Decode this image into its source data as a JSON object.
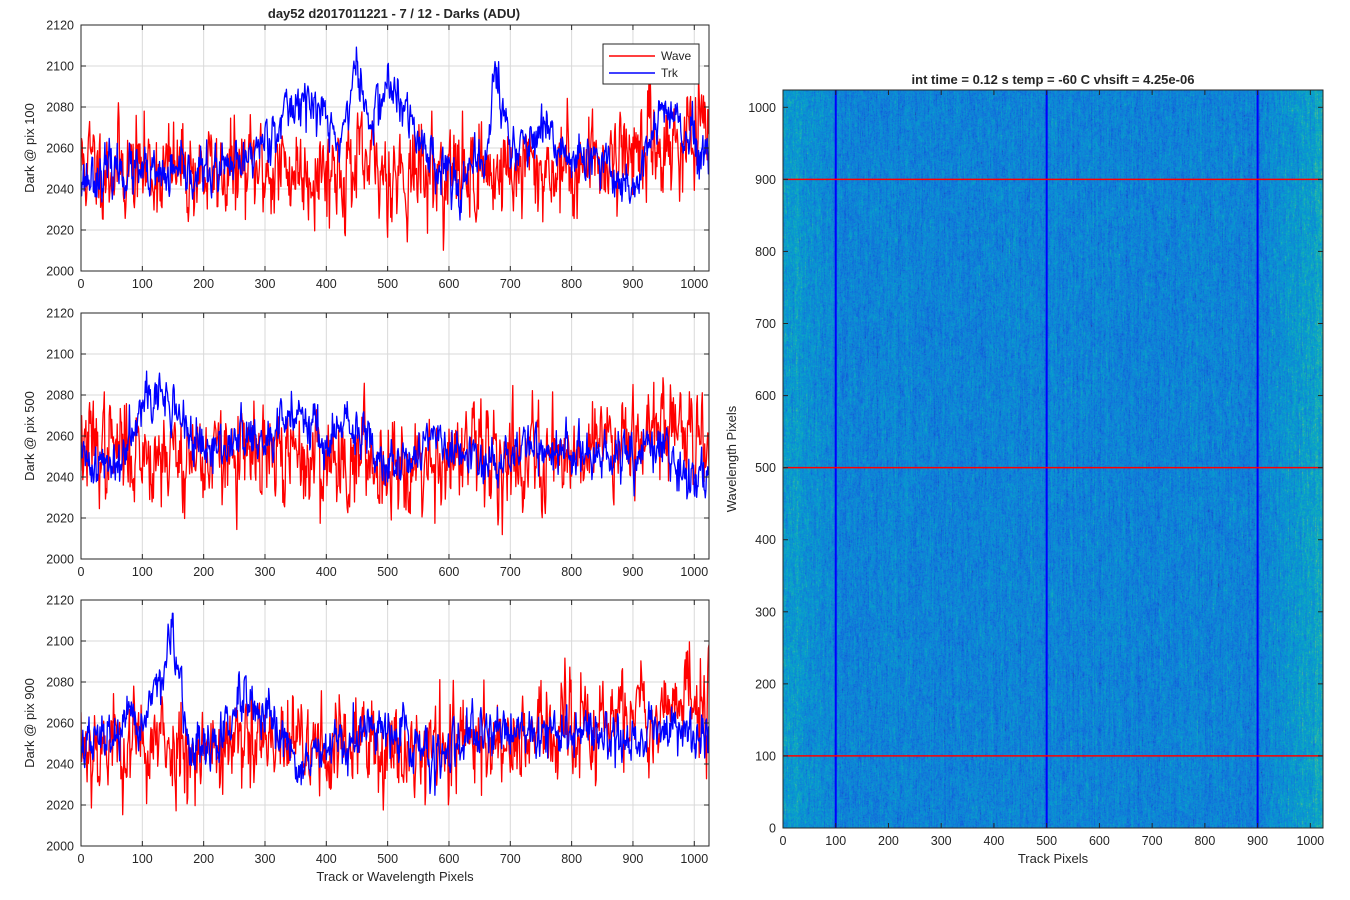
{
  "figure_title": "day52 d2017011221 - 7 / 12 - Darks (ADU)",
  "colors": {
    "wave": "#ff0000",
    "trk": "#0000ff",
    "grid": "#d9d9d9",
    "axis": "#262626"
  },
  "chart_data": [
    {
      "type": "line",
      "title": "day52 d2017011221 - 7 / 12 - Darks (ADU)",
      "xlabel": "",
      "ylabel": "Dark @ pix 100",
      "xlim": [
        0,
        1024
      ],
      "ylim": [
        2000,
        2120
      ],
      "x_ticks": [
        0,
        100,
        200,
        300,
        400,
        500,
        600,
        700,
        800,
        900,
        1000
      ],
      "y_ticks": [
        2000,
        2020,
        2040,
        2060,
        2080,
        2100,
        2120
      ],
      "grid": true,
      "legend": {
        "location": "top-right",
        "entries": [
          "Wave",
          "Trk"
        ]
      },
      "series": [
        {
          "name": "Wave",
          "color": "#ff0000",
          "mean": 2050,
          "noise": 12,
          "seed": 11,
          "anchors": [
            [
              0,
              2052
            ],
            [
              200,
              2048
            ],
            [
              400,
              2050
            ],
            [
              600,
              2048
            ],
            [
              800,
              2050
            ],
            [
              900,
              2060
            ],
            [
              1024,
              2065
            ]
          ]
        },
        {
          "name": "Trk",
          "color": "#0000ff",
          "mean": 2050,
          "noise": 6,
          "seed": 23,
          "anchors": [
            [
              0,
              2045
            ],
            [
              60,
              2050
            ],
            [
              120,
              2045
            ],
            [
              200,
              2048
            ],
            [
              260,
              2050
            ],
            [
              300,
              2065
            ],
            [
              360,
              2085
            ],
            [
              400,
              2075
            ],
            [
              420,
              2060
            ],
            [
              450,
              2100
            ],
            [
              470,
              2070
            ],
            [
              500,
              2092
            ],
            [
              560,
              2060
            ],
            [
              620,
              2042
            ],
            [
              660,
              2055
            ],
            [
              675,
              2098
            ],
            [
              700,
              2060
            ],
            [
              760,
              2065
            ],
            [
              800,
              2055
            ],
            [
              860,
              2050
            ],
            [
              900,
              2040
            ],
            [
              950,
              2080
            ],
            [
              1000,
              2060
            ],
            [
              1024,
              2050
            ]
          ]
        }
      ]
    },
    {
      "type": "line",
      "title": "",
      "xlabel": "",
      "ylabel": "Dark @ pix 500",
      "xlim": [
        0,
        1024
      ],
      "ylim": [
        2000,
        2120
      ],
      "x_ticks": [
        0,
        100,
        200,
        300,
        400,
        500,
        600,
        700,
        800,
        900,
        1000
      ],
      "y_ticks": [
        2000,
        2020,
        2040,
        2060,
        2080,
        2100,
        2120
      ],
      "grid": true,
      "series": [
        {
          "name": "Wave",
          "color": "#ff0000",
          "mean": 2050,
          "noise": 12,
          "seed": 37,
          "anchors": [
            [
              0,
              2055
            ],
            [
              200,
              2050
            ],
            [
              500,
              2048
            ],
            [
              800,
              2052
            ],
            [
              900,
              2065
            ],
            [
              1024,
              2062
            ]
          ]
        },
        {
          "name": "Trk",
          "color": "#0000ff",
          "mean": 2050,
          "noise": 6,
          "seed": 41,
          "anchors": [
            [
              0,
              2048
            ],
            [
              60,
              2045
            ],
            [
              100,
              2082
            ],
            [
              150,
              2075
            ],
            [
              200,
              2050
            ],
            [
              260,
              2060
            ],
            [
              300,
              2055
            ],
            [
              360,
              2075
            ],
            [
              400,
              2055
            ],
            [
              430,
              2065
            ],
            [
              500,
              2050
            ],
            [
              540,
              2045
            ],
            [
              560,
              2062
            ],
            [
              600,
              2052
            ],
            [
              660,
              2045
            ],
            [
              720,
              2055
            ],
            [
              800,
              2052
            ],
            [
              850,
              2048
            ],
            [
              900,
              2050
            ],
            [
              950,
              2055
            ],
            [
              980,
              2040
            ],
            [
              1024,
              2042
            ]
          ]
        }
      ]
    },
    {
      "type": "line",
      "title": "",
      "xlabel": "Track or Wavelength Pixels",
      "ylabel": "Dark @ pix 900",
      "xlim": [
        0,
        1024
      ],
      "ylim": [
        2000,
        2120
      ],
      "x_ticks": [
        0,
        100,
        200,
        300,
        400,
        500,
        600,
        700,
        800,
        900,
        1000
      ],
      "y_ticks": [
        2000,
        2020,
        2040,
        2060,
        2080,
        2100,
        2120
      ],
      "grid": true,
      "series": [
        {
          "name": "Wave",
          "color": "#ff0000",
          "mean": 2050,
          "noise": 12,
          "seed": 53,
          "anchors": [
            [
              0,
              2050
            ],
            [
              300,
              2048
            ],
            [
              600,
              2050
            ],
            [
              800,
              2055
            ],
            [
              900,
              2065
            ],
            [
              1024,
              2072
            ]
          ]
        },
        {
          "name": "Trk",
          "color": "#0000ff",
          "mean": 2050,
          "noise": 6,
          "seed": 67,
          "anchors": [
            [
              0,
              2048
            ],
            [
              100,
              2060
            ],
            [
              150,
              2100
            ],
            [
              175,
              2048
            ],
            [
              220,
              2048
            ],
            [
              260,
              2070
            ],
            [
              300,
              2060
            ],
            [
              360,
              2040
            ],
            [
              400,
              2045
            ],
            [
              470,
              2055
            ],
            [
              500,
              2060
            ],
            [
              560,
              2045
            ],
            [
              600,
              2045
            ],
            [
              680,
              2058
            ],
            [
              800,
              2055
            ],
            [
              850,
              2055
            ],
            [
              900,
              2050
            ],
            [
              950,
              2060
            ],
            [
              1024,
              2052
            ]
          ]
        }
      ]
    },
    {
      "type": "heatmap",
      "title": "int time = 0.12 s    temp = -60 C    vhsift = 4.25e-06",
      "xlabel": "Track Pixels",
      "ylabel": "Wavelength Pixels",
      "xlim": [
        0,
        1024
      ],
      "ylim": [
        0,
        1024
      ],
      "x_ticks": [
        0,
        100,
        200,
        300,
        400,
        500,
        600,
        700,
        800,
        900,
        1000
      ],
      "y_ticks": [
        0,
        100,
        200,
        300,
        400,
        500,
        600,
        700,
        800,
        900,
        1000
      ],
      "colormap": "parula",
      "vertical_markers": {
        "x": [
          100,
          500,
          900
        ],
        "color": "#0000ff"
      },
      "horizontal_markers": {
        "y": [
          100,
          500,
          900
        ],
        "color": "#ff0000"
      }
    }
  ]
}
